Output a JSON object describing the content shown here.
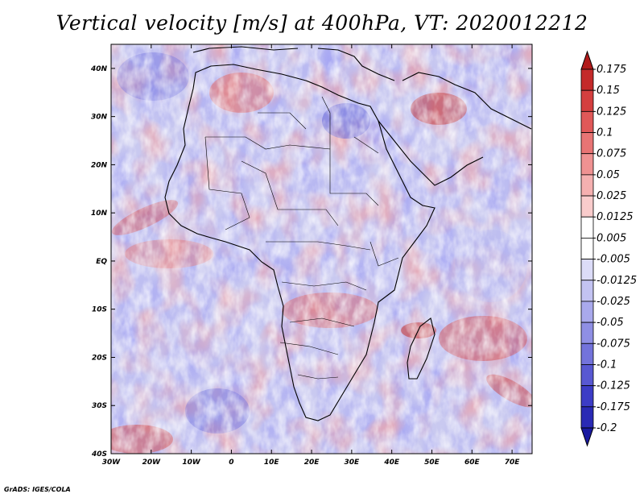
{
  "title": "Vertical velocity [m/s] at 400hPa, VT: 2020012212",
  "credit": "GrADS: IGES/COLA",
  "map": {
    "lat_labels": [
      "40N",
      "30N",
      "20N",
      "10N",
      "EQ",
      "10S",
      "20S",
      "30S",
      "40S"
    ],
    "lon_labels": [
      "30W",
      "20W",
      "10W",
      "0",
      "10E",
      "20E",
      "30E",
      "40E",
      "50E",
      "60E",
      "70E"
    ],
    "lon_range": [
      -30,
      75
    ],
    "lat_range": [
      -40,
      45
    ]
  },
  "colorbar": {
    "labels": [
      "0.175",
      "0.15",
      "0.125",
      "0.1",
      "0.075",
      "0.05",
      "0.025",
      "0.0125",
      "0.005",
      "-0.005",
      "-0.0125",
      "-0.025",
      "-0.05",
      "-0.075",
      "-0.1",
      "-0.125",
      "-0.175",
      "-0.2"
    ],
    "colors": [
      "#b11a1a",
      "#c42a2a",
      "#d43f3f",
      "#e05858",
      "#e87474",
      "#ef9292",
      "#f5b0b0",
      "#f9cccc",
      "#ffffff",
      "#ffffff",
      "#dcdcf8",
      "#c3c3f2",
      "#a9a9ec",
      "#8f8fe4",
      "#7373db",
      "#5858d2",
      "#3c3cc6",
      "#2a2ab5",
      "#1a1aa0"
    ]
  }
}
